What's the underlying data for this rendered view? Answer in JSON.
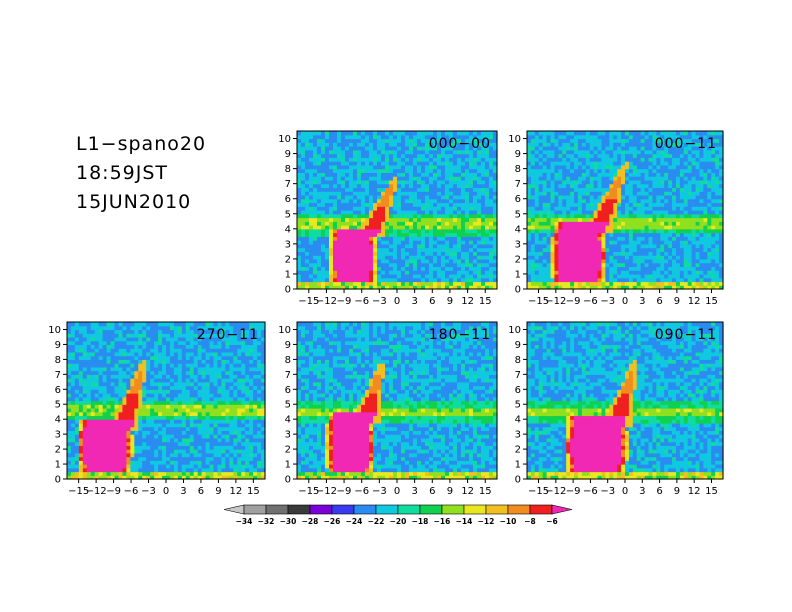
{
  "header": {
    "title": "L1−spano20",
    "time": "18:59JST",
    "date": "15JUN2010"
  },
  "chart_data": {
    "type": "heatmap",
    "x_ticks": [
      "−15",
      "−12",
      "−9",
      "−6",
      "−3",
      "0",
      "3",
      "6",
      "9",
      "12",
      "15"
    ],
    "x_tick_values": [
      -15,
      -12,
      -9,
      -6,
      -3,
      0,
      3,
      6,
      9,
      12,
      15
    ],
    "y_ticks": [
      "0",
      "1",
      "2",
      "3",
      "4",
      "5",
      "6",
      "7",
      "8",
      "9",
      "10"
    ],
    "y_tick_values": [
      0,
      1,
      2,
      3,
      4,
      5,
      6,
      7,
      8,
      9,
      10
    ],
    "xlim": [
      -17,
      17
    ],
    "ylim": [
      0,
      10.5
    ],
    "panels": [
      {
        "id": "000-00",
        "label": "000−00",
        "layer": 4.3,
        "coreTop": 3.9,
        "apex": [
          0,
          7.6
        ],
        "coreL": -10.5,
        "coreR": -4.5
      },
      {
        "id": "000-11",
        "label": "000−11",
        "layer": 4.4,
        "coreTop": 4.2,
        "apex": [
          0.2,
          8.4
        ],
        "coreL": -11.5,
        "coreR": -4.5
      },
      {
        "id": "270-11",
        "label": "270−11",
        "layer": 4.6,
        "coreTop": 3.8,
        "apex": [
          -3.6,
          8.0
        ],
        "coreL": -14,
        "coreR": -7
      },
      {
        "id": "180-11",
        "label": "180−11",
        "layer": 4.5,
        "coreTop": 4.2,
        "apex": [
          -2.6,
          7.8
        ],
        "coreL": -11,
        "coreR": -5
      },
      {
        "id": "090-11",
        "label": "090−11",
        "layer": 4.5,
        "coreTop": 4.1,
        "apex": [
          1.8,
          8.0
        ],
        "coreL": -9,
        "coreR": -1
      }
    ],
    "colorbar": {
      "labels": [
        "−34",
        "−32",
        "−30",
        "−28",
        "−26",
        "−24",
        "−22",
        "−20",
        "−18",
        "−16",
        "−14",
        "−12",
        "−10",
        "−8",
        "−6"
      ],
      "colors": [
        "#c8c8c8",
        "#a0a0a0",
        "#707070",
        "#3a3a3a",
        "#7a00d8",
        "#3a3af0",
        "#2a8cf0",
        "#10c8e0",
        "#10dca0",
        "#10d050",
        "#90e020",
        "#e8e820",
        "#f0c020",
        "#f08c20",
        "#f02020",
        "#f028b4"
      ]
    }
  }
}
